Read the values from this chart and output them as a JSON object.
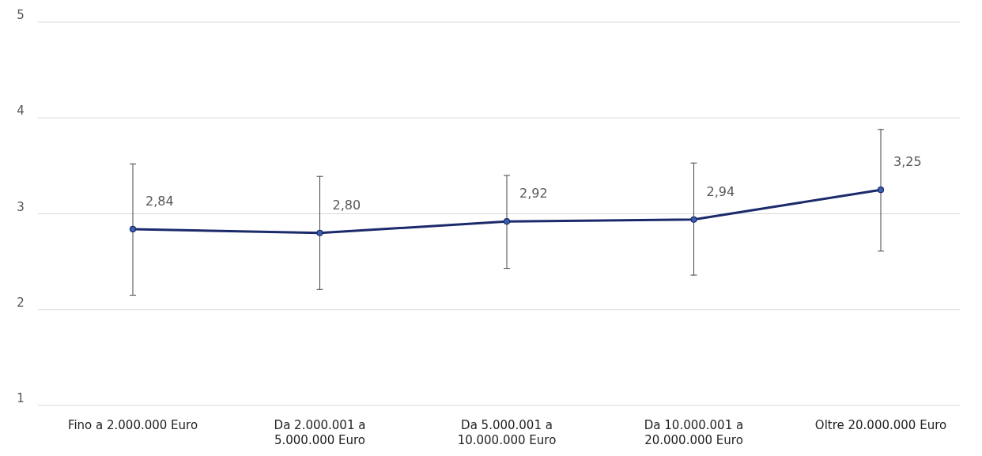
{
  "chart_data": {
    "type": "line",
    "categories": [
      "Fino a 2.000.000 Euro",
      "Da 2.000.001 a 5.000.000 Euro",
      "Da 5.000.001 a 10.000.000 Euro",
      "Da 10.000.001 a 20.000.000 Euro",
      "Oltre 20.000.000 Euro"
    ],
    "series": [
      {
        "color": "#1b2a6b",
        "values": [
          2.84,
          2.8,
          2.92,
          2.94,
          3.25
        ],
        "errors": [
          [
            2.15,
            3.52
          ],
          [
            2.21,
            3.39
          ],
          [
            2.43,
            3.4
          ],
          [
            2.36,
            3.53
          ],
          [
            2.61,
            3.88
          ]
        ],
        "value_labels": [
          "2,84",
          "2,80",
          "2,92",
          "2,94",
          "3,25"
        ]
      }
    ],
    "ylim": [
      1,
      5
    ],
    "yticks": [
      1,
      2,
      3,
      4,
      5
    ],
    "grid": "y",
    "marker": "circle",
    "line_style": "solid"
  }
}
